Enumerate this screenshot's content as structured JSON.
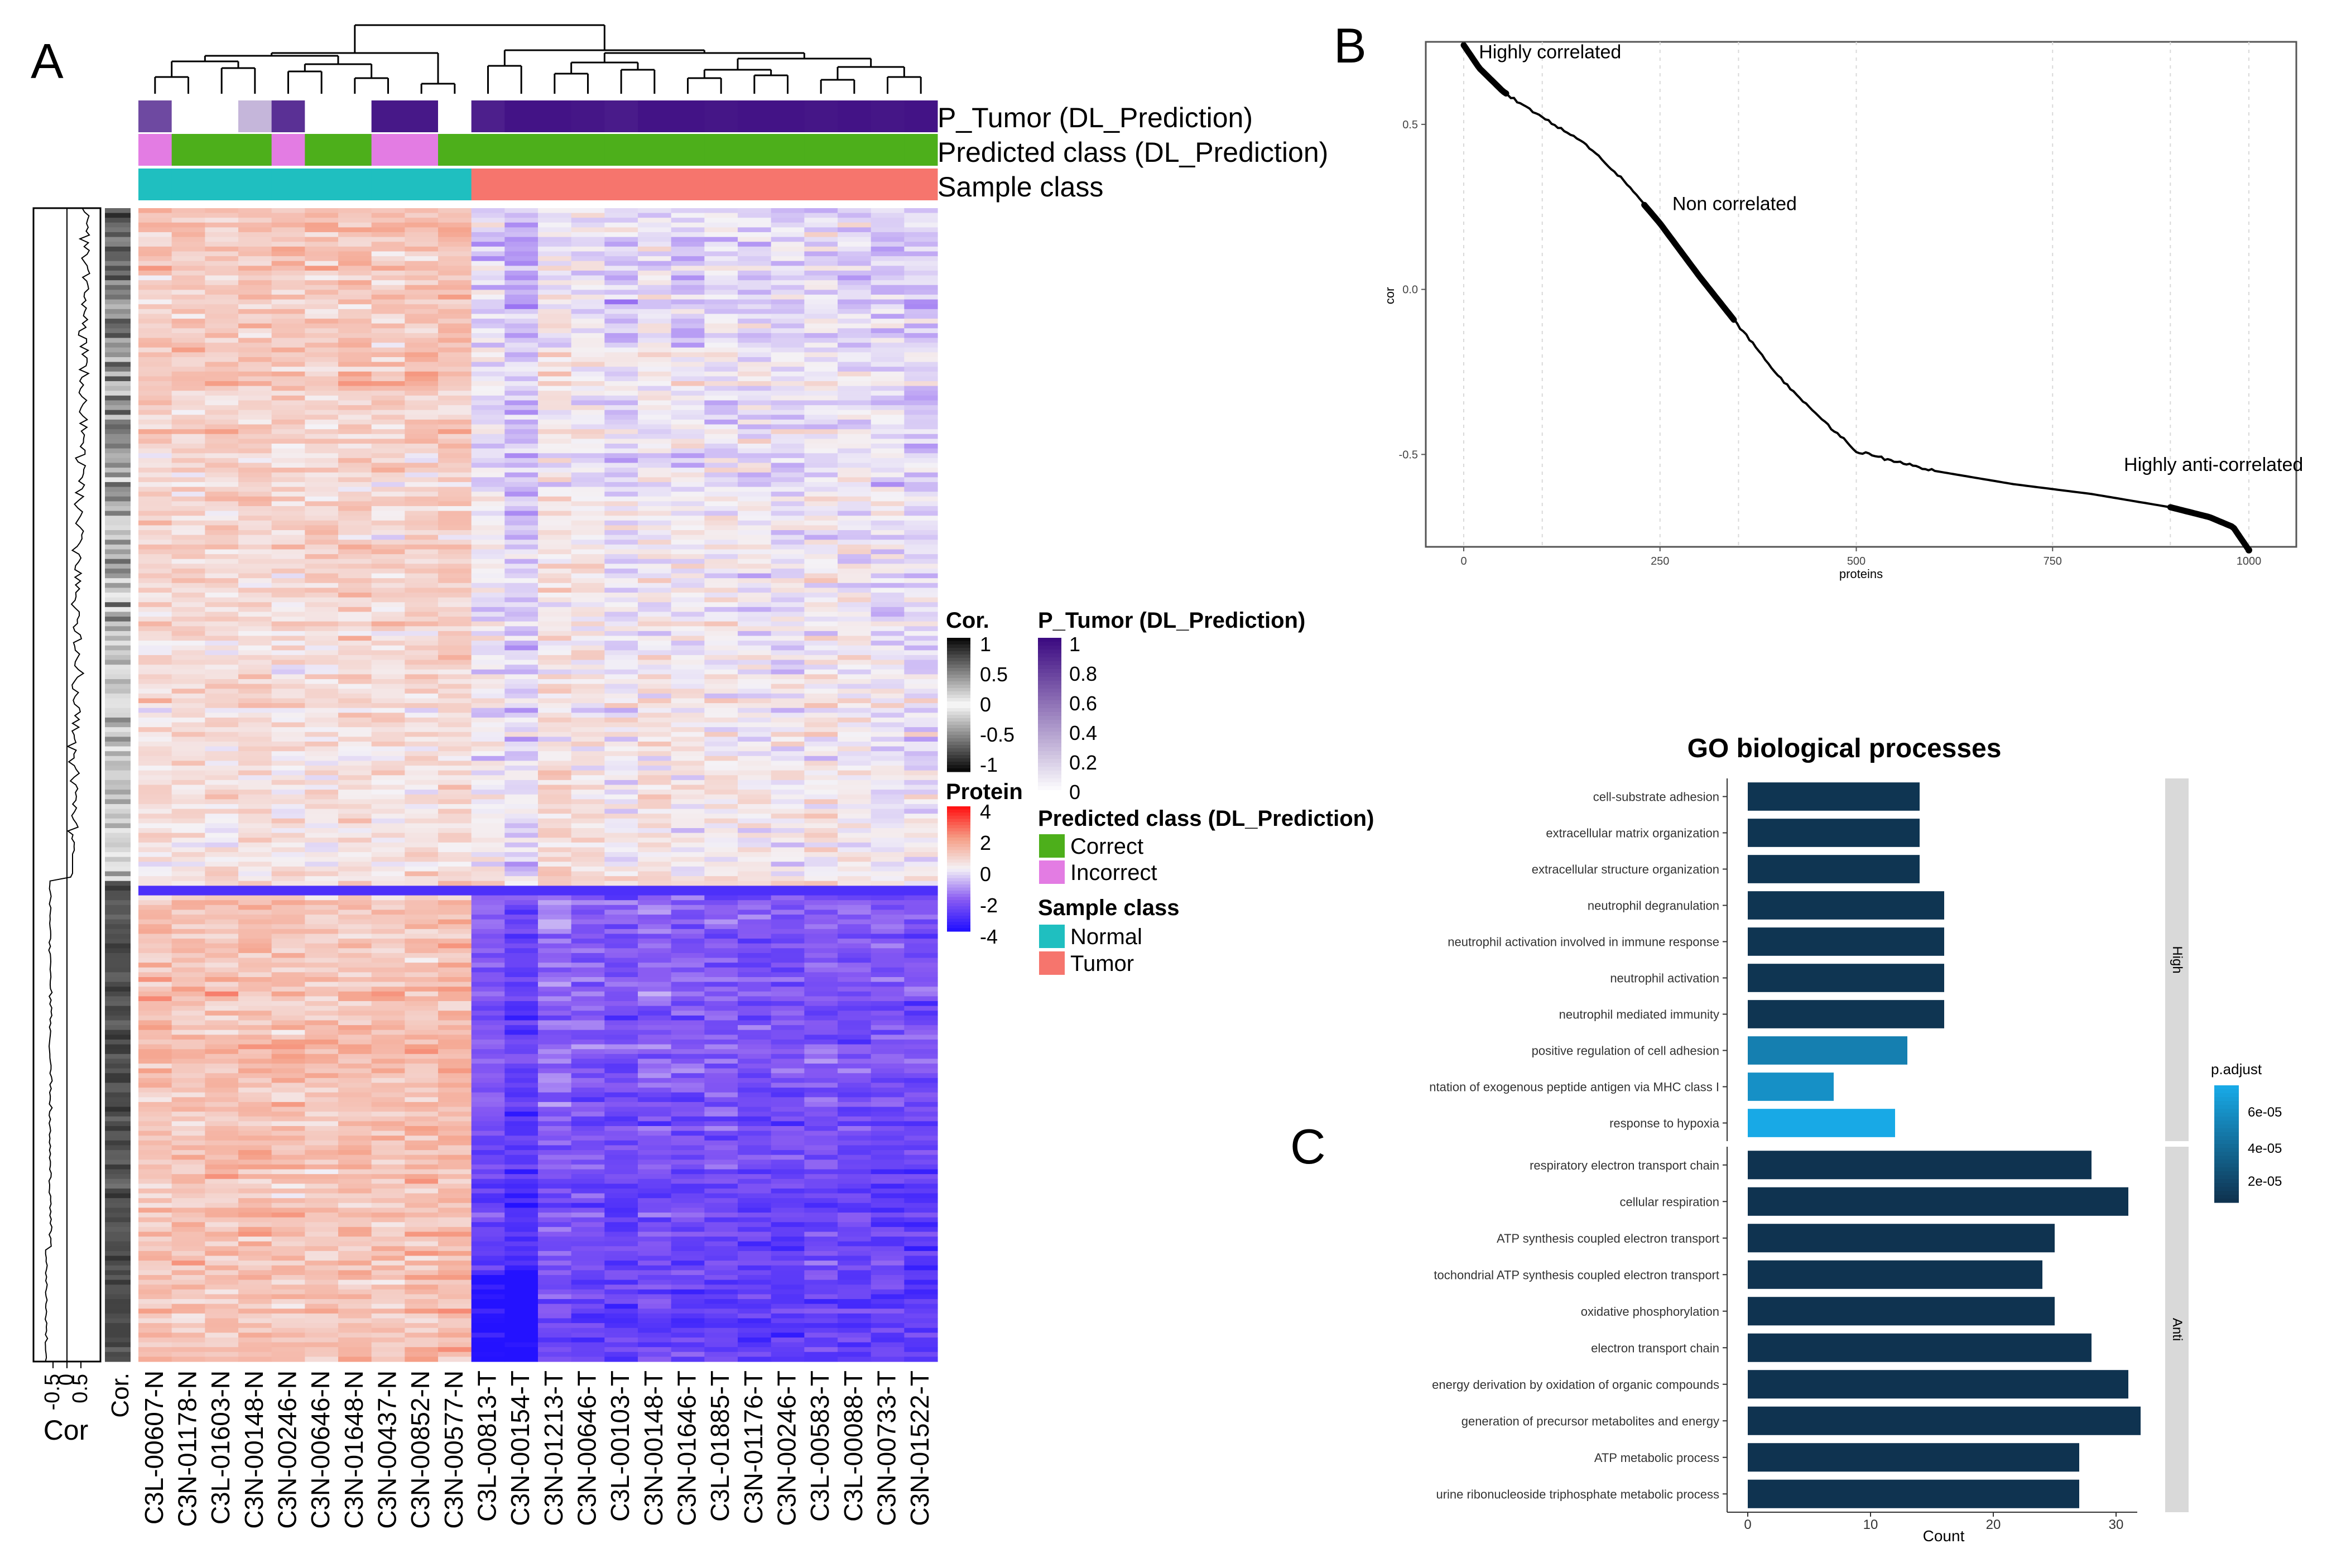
{
  "panels": {
    "a": "A",
    "b": "B",
    "c": "C"
  },
  "colors": {
    "correct": "#4daf1b",
    "incorrect": "#e37ce3",
    "normal": "#1fbfc0",
    "tumor": "#f6756d",
    "ptumor_high": "#3d0c82",
    "go_dark": "#0f3350",
    "go_light": "#18a9e6",
    "cor_line": "#000000"
  },
  "heatmap": {
    "samples": [
      "C3L-00607-N",
      "C3N-01178-N",
      "C3L-01603-N",
      "C3N-00148-N",
      "C3N-00246-N",
      "C3N-00646-N",
      "C3N-01648-N",
      "C3N-00437-N",
      "C3N-00852-N",
      "C3N-00577-N",
      "C3L-00813-T",
      "C3N-00154-T",
      "C3N-01213-T",
      "C3N-00646-T",
      "C3L-00103-T",
      "C3N-00148-T",
      "C3N-01646-T",
      "C3L-01885-T",
      "C3N-01176-T",
      "C3N-00246-T",
      "C3L-00583-T",
      "C3L-00088-T",
      "C3N-00733-T",
      "C3N-01522-T"
    ],
    "p_tumor": [
      0.75,
      0.0,
      0.0,
      0.3,
      0.85,
      0.0,
      0.0,
      0.95,
      0.95,
      0.0,
      0.92,
      0.97,
      0.97,
      0.96,
      0.94,
      0.97,
      0.97,
      0.96,
      0.97,
      0.97,
      0.96,
      0.97,
      0.96,
      0.97
    ],
    "predicted": [
      "Incorrect",
      "Correct",
      "Correct",
      "Correct",
      "Incorrect",
      "Correct",
      "Correct",
      "Incorrect",
      "Incorrect",
      "Correct",
      "Correct",
      "Correct",
      "Correct",
      "Correct",
      "Correct",
      "Correct",
      "Correct",
      "Correct",
      "Correct",
      "Correct",
      "Correct",
      "Correct",
      "Correct",
      "Correct"
    ],
    "sample_class": [
      "Normal",
      "Normal",
      "Normal",
      "Normal",
      "Normal",
      "Normal",
      "Normal",
      "Normal",
      "Normal",
      "Normal",
      "Tumor",
      "Tumor",
      "Tumor",
      "Tumor",
      "Tumor",
      "Tumor",
      "Tumor",
      "Tumor",
      "Tumor",
      "Tumor",
      "Tumor",
      "Tumor",
      "Tumor",
      "Tumor"
    ],
    "annotation_labels": [
      "P_Tumor (DL_Prediction)",
      "Predicted class (DL_Prediction)",
      "Sample class"
    ],
    "cor_axis_ticks": [
      "-0.5",
      "0",
      "0.5"
    ],
    "cor_axis_title": "Cor",
    "cor_column_label": "Cor."
  },
  "legend": {
    "cor": {
      "title": "Cor.",
      "ticks": [
        "1",
        "0.5",
        "0",
        "-0.5",
        "-1"
      ]
    },
    "protein": {
      "title": "Protein",
      "ticks": [
        "4",
        "2",
        "0",
        "-2",
        "-4"
      ]
    },
    "p_tumor": {
      "title": "P_Tumor (DL_Prediction)",
      "ticks": [
        "1",
        "0.8",
        "0.6",
        "0.4",
        "0.2",
        "0"
      ]
    },
    "predicted_class": {
      "title": "Predicted class (DL_Prediction)",
      "items": [
        "Correct",
        "Incorrect"
      ]
    },
    "sample_class": {
      "title": "Sample class",
      "items": [
        "Normal",
        "Tumor"
      ]
    }
  },
  "chart_data": [
    {
      "type": "line",
      "title": "",
      "xlabel": "proteins",
      "ylabel": "cor",
      "xlim": [
        0,
        1000
      ],
      "ylim": [
        -0.78,
        0.75
      ],
      "x_ticks": [
        0,
        250,
        500,
        750,
        1000
      ],
      "y_ticks": [
        -0.5,
        0.0,
        0.5
      ],
      "y_tick_labels": [
        "-0.5",
        "0.0",
        "0.5"
      ],
      "x": [
        0,
        20,
        50,
        100,
        150,
        200,
        250,
        300,
        350,
        400,
        450,
        500,
        600,
        700,
        800,
        900,
        950,
        980,
        1000
      ],
      "y": [
        0.74,
        0.67,
        0.6,
        0.52,
        0.45,
        0.34,
        0.2,
        0.04,
        -0.11,
        -0.26,
        -0.38,
        -0.49,
        -0.55,
        -0.59,
        -0.62,
        -0.66,
        -0.69,
        -0.72,
        -0.79
      ],
      "annotations": [
        {
          "text": "Highly correlated",
          "x": 110,
          "y": 0.7
        },
        {
          "text": "Non correlated",
          "x": 345,
          "y": 0.24
        },
        {
          "text": "Highly anti-correlated",
          "x": 955,
          "y": -0.55
        }
      ]
    },
    {
      "type": "bar",
      "orientation": "horizontal",
      "title": "GO biological processes",
      "xlabel": "Count",
      "ylabel": "",
      "xlim": [
        0,
        33
      ],
      "x_ticks": [
        0,
        10,
        20,
        30
      ],
      "legend": {
        "title": "p.adjust",
        "ticks": [
          "6e-05",
          "4e-05",
          "2e-05"
        ],
        "position": "right"
      },
      "facets": [
        {
          "name": "High",
          "categories": [
            "cell-substrate adhesion",
            "extracellular matrix organization",
            "extracellular structure organization",
            "neutrophil degranulation",
            "neutrophil activation involved in immune response",
            "neutrophil activation",
            "neutrophil mediated immunity",
            "positive regulation of cell adhesion",
            "ntation of exogenous peptide antigen via MHC class I",
            "response to hypoxia"
          ],
          "values": [
            14,
            14,
            14,
            16,
            16,
            16,
            16,
            13,
            7,
            12
          ],
          "p_adjust": [
            1e-06,
            1e-06,
            1e-06,
            1e-06,
            1e-06,
            1e-06,
            1e-06,
            4.5e-05,
            5.5e-05,
            7e-05
          ]
        },
        {
          "name": "Anti",
          "categories": [
            "respiratory electron transport chain",
            "cellular respiration",
            "ATP synthesis coupled electron transport",
            "tochondrial ATP synthesis coupled electron transport",
            "oxidative phosphorylation",
            "electron transport chain",
            "energy derivation by oxidation of organic compounds",
            "generation of precursor metabolites and energy",
            "ATP metabolic process",
            "urine ribonucleoside triphosphate metabolic process"
          ],
          "values": [
            28,
            31,
            25,
            24,
            25,
            28,
            31,
            32,
            27,
            27
          ],
          "p_adjust": [
            1e-07,
            1e-07,
            1e-07,
            1e-07,
            1e-07,
            1e-07,
            1e-07,
            1e-07,
            1e-07,
            1e-07
          ]
        }
      ]
    }
  ]
}
